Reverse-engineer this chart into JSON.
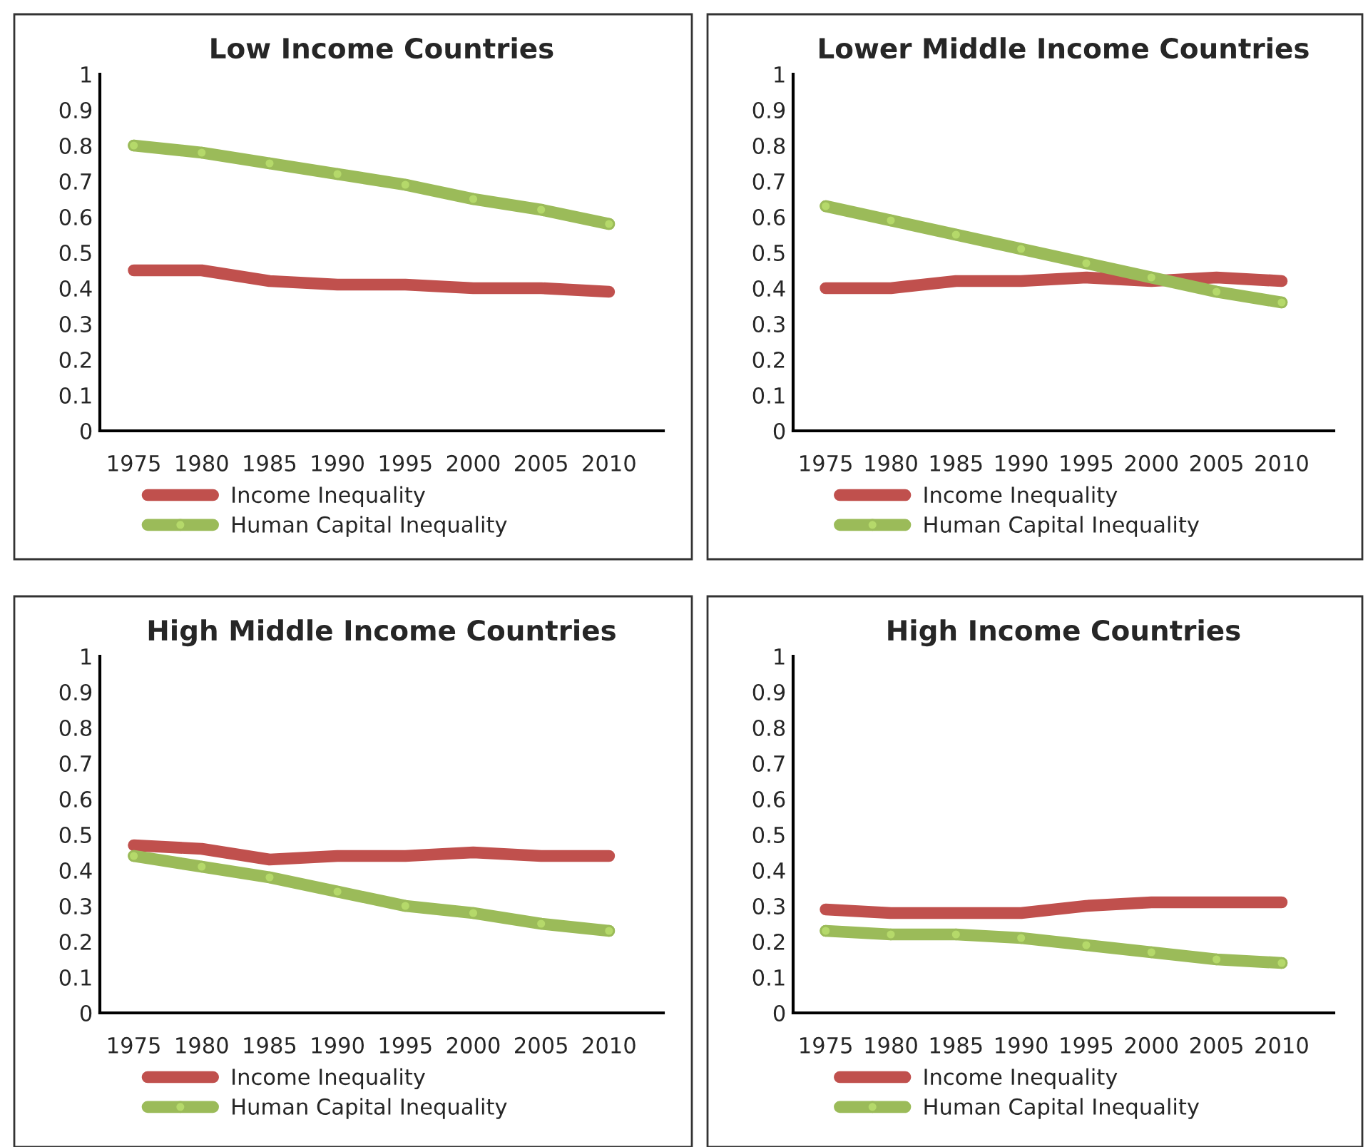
{
  "chart_data": [
    {
      "type": "line",
      "title": "Low Income Countries",
      "categories": [
        "1975",
        "1980",
        "1985",
        "1990",
        "1995",
        "2000",
        "2005",
        "2010"
      ],
      "ylim": [
        0,
        1
      ],
      "yticks": [
        0,
        0.1,
        0.2,
        0.3,
        0.4,
        0.5,
        0.6,
        0.7,
        0.8,
        0.9,
        1
      ],
      "grid": false,
      "legend": "bottom",
      "series": [
        {
          "name": "Income Inequality",
          "color": "#c0504d",
          "marker": "none",
          "values": [
            0.45,
            0.45,
            0.42,
            0.41,
            0.41,
            0.4,
            0.4,
            0.39
          ]
        },
        {
          "name": "Human Capital Inequality",
          "color": "#9bbb59",
          "marker": "circle",
          "values": [
            0.8,
            0.78,
            0.75,
            0.72,
            0.69,
            0.65,
            0.62,
            0.58
          ]
        }
      ]
    },
    {
      "type": "line",
      "title": "Lower Middle Income Countries",
      "categories": [
        "1975",
        "1980",
        "1985",
        "1990",
        "1995",
        "2000",
        "2005",
        "2010"
      ],
      "ylim": [
        0,
        1
      ],
      "yticks": [
        0,
        0.1,
        0.2,
        0.3,
        0.4,
        0.5,
        0.6,
        0.7,
        0.8,
        0.9,
        1
      ],
      "grid": false,
      "legend": "bottom",
      "series": [
        {
          "name": "Income Inequality",
          "color": "#c0504d",
          "marker": "none",
          "values": [
            0.4,
            0.4,
            0.42,
            0.42,
            0.43,
            0.42,
            0.43,
            0.42
          ]
        },
        {
          "name": "Human Capital Inequality",
          "color": "#9bbb59",
          "marker": "circle",
          "values": [
            0.63,
            0.59,
            0.55,
            0.51,
            0.47,
            0.43,
            0.39,
            0.36
          ]
        }
      ]
    },
    {
      "type": "line",
      "title": "High Middle Income Countries",
      "categories": [
        "1975",
        "1980",
        "1985",
        "1990",
        "1995",
        "2000",
        "2005",
        "2010"
      ],
      "ylim": [
        0,
        1
      ],
      "yticks": [
        0,
        0.1,
        0.2,
        0.3,
        0.4,
        0.5,
        0.6,
        0.7,
        0.8,
        0.9,
        1
      ],
      "grid": false,
      "legend": "bottom",
      "series": [
        {
          "name": "Income Inequality",
          "color": "#c0504d",
          "marker": "none",
          "values": [
            0.47,
            0.46,
            0.43,
            0.44,
            0.44,
            0.45,
            0.44,
            0.44
          ]
        },
        {
          "name": "Human Capital Inequality",
          "color": "#9bbb59",
          "marker": "circle",
          "values": [
            0.44,
            0.41,
            0.38,
            0.34,
            0.3,
            0.28,
            0.25,
            0.23
          ]
        }
      ]
    },
    {
      "type": "line",
      "title": "High Income Countries",
      "categories": [
        "1975",
        "1980",
        "1985",
        "1990",
        "1995",
        "2000",
        "2005",
        "2010"
      ],
      "ylim": [
        0,
        1
      ],
      "yticks": [
        0,
        0.1,
        0.2,
        0.3,
        0.4,
        0.5,
        0.6,
        0.7,
        0.8,
        0.9,
        1
      ],
      "grid": false,
      "legend": "bottom",
      "series": [
        {
          "name": "Income Inequality",
          "color": "#c0504d",
          "marker": "none",
          "values": [
            0.29,
            0.28,
            0.28,
            0.28,
            0.3,
            0.31,
            0.31,
            0.31
          ]
        },
        {
          "name": "Human Capital Inequality",
          "color": "#9bbb59",
          "marker": "circle",
          "values": [
            0.23,
            0.22,
            0.22,
            0.21,
            0.19,
            0.17,
            0.15,
            0.14
          ]
        }
      ]
    }
  ]
}
